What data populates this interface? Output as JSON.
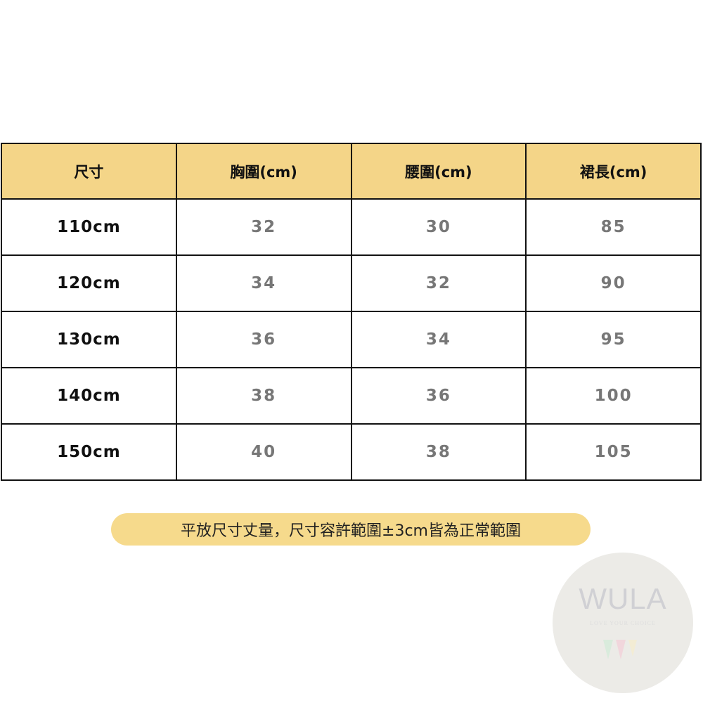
{
  "table": {
    "headers": [
      "尺寸",
      "胸圍(cm)",
      "腰圍(cm)",
      "裙長(cm)"
    ],
    "rows": [
      [
        "110cm",
        "32",
        "30",
        "85"
      ],
      [
        "120cm",
        "34",
        "32",
        "90"
      ],
      [
        "130cm",
        "36",
        "34",
        "95"
      ],
      [
        "140cm",
        "38",
        "36",
        "100"
      ],
      [
        "150cm",
        "40",
        "38",
        "105"
      ]
    ]
  },
  "note": "平放尺寸丈量，尺寸容許範圍±3cm皆為正常範圍",
  "watermark": {
    "brand": "WULA",
    "tagline": "LOVE YOUR CHOICE"
  },
  "colors": {
    "header_bg": "#f4d588",
    "note_bg": "#f6da8c",
    "value_text": "#777777"
  }
}
